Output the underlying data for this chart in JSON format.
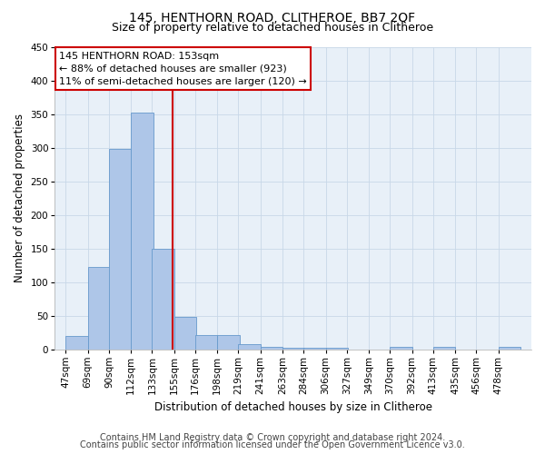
{
  "title": "145, HENTHORN ROAD, CLITHEROE, BB7 2QF",
  "subtitle": "Size of property relative to detached houses in Clitheroe",
  "xlabel": "Distribution of detached houses by size in Clitheroe",
  "ylabel": "Number of detached properties",
  "footer_line1": "Contains HM Land Registry data © Crown copyright and database right 2024.",
  "footer_line2": "Contains public sector information licensed under the Open Government Licence v3.0.",
  "bar_edges": [
    47,
    69,
    90,
    112,
    133,
    155,
    176,
    198,
    219,
    241,
    263,
    284,
    306,
    327,
    349,
    370,
    392,
    413,
    435,
    456,
    478
  ],
  "bar_heights": [
    20,
    122,
    298,
    352,
    150,
    48,
    21,
    21,
    8,
    3,
    2,
    2,
    2,
    0,
    0,
    3,
    0,
    3,
    0,
    0,
    3
  ],
  "bar_color": "#aec6e8",
  "bar_edge_color": "#6699cc",
  "vline_x": 153,
  "vline_color": "#cc0000",
  "annotation_text": "145 HENTHORN ROAD: 153sqm\n← 88% of detached houses are smaller (923)\n11% of semi-detached houses are larger (120) →",
  "annotation_box_color": "#ffffff",
  "annotation_box_edge_color": "#cc0000",
  "ylim": [
    0,
    450
  ],
  "yticks": [
    0,
    50,
    100,
    150,
    200,
    250,
    300,
    350,
    400,
    450
  ],
  "background_color": "#ffffff",
  "grid_color": "#c8d8e8",
  "title_fontsize": 10,
  "subtitle_fontsize": 9,
  "axis_label_fontsize": 8.5,
  "tick_fontsize": 7.5,
  "annotation_fontsize": 8,
  "footer_fontsize": 7
}
